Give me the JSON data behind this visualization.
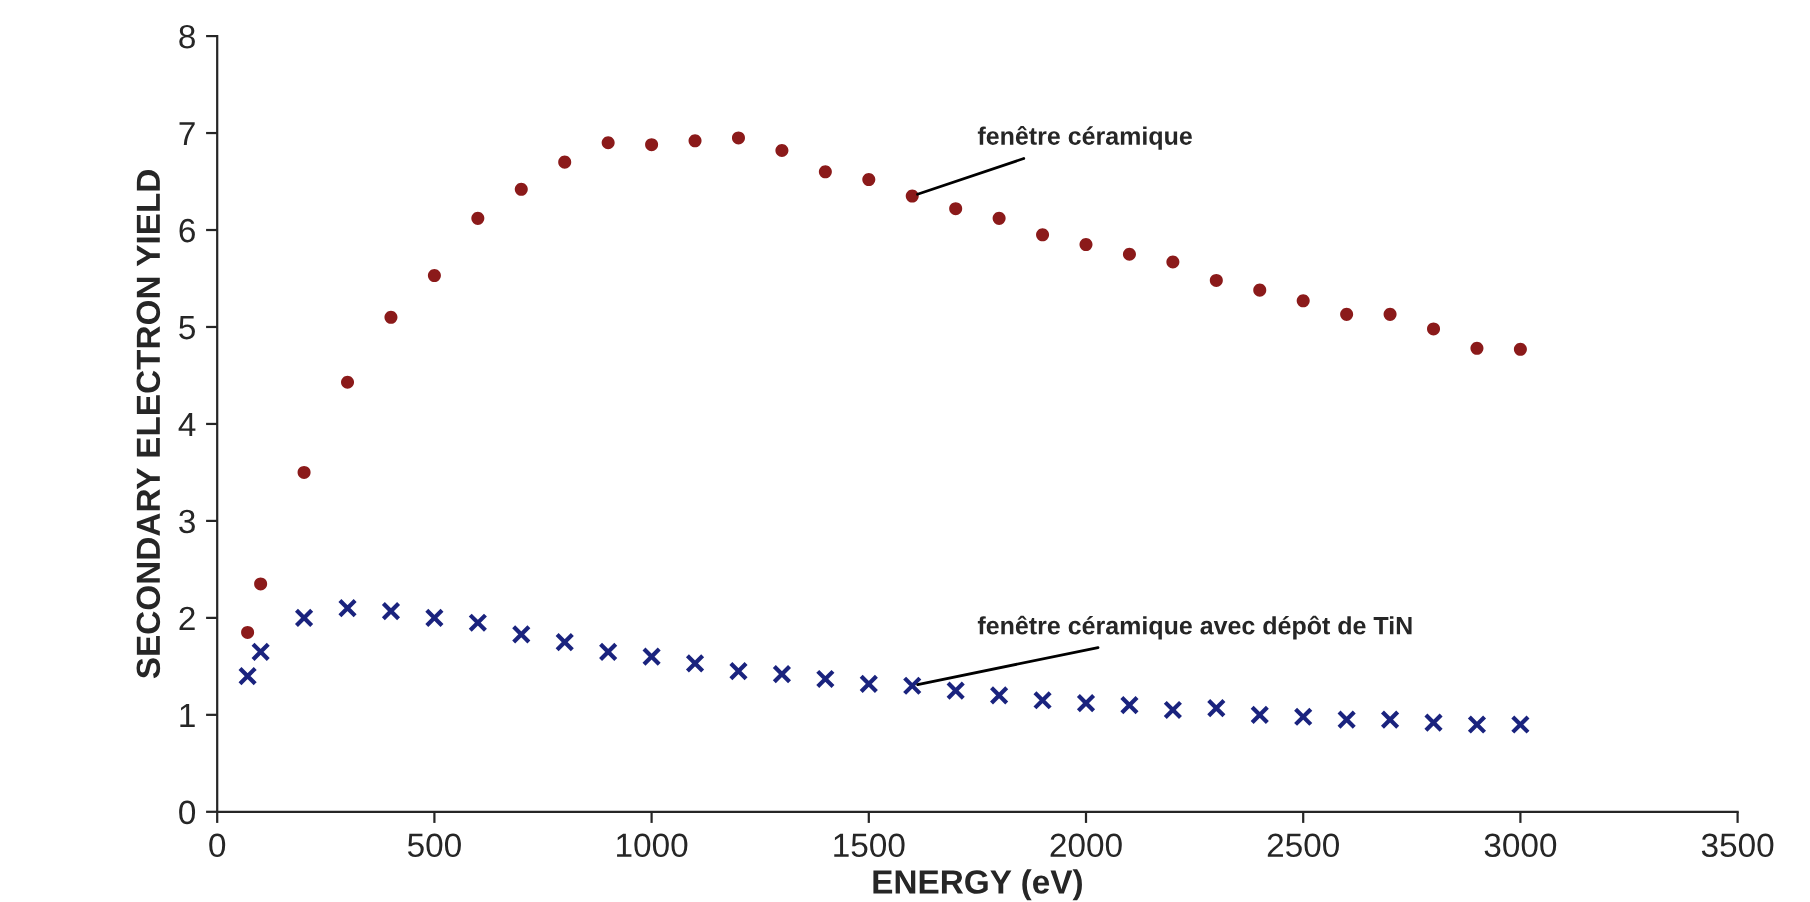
{
  "chart_data": {
    "type": "scatter",
    "xlabel": "ENERGY (eV)",
    "ylabel": "SECONDARY ELECTRON YIELD",
    "x": [
      70,
      100,
      200,
      300,
      400,
      500,
      600,
      700,
      800,
      900,
      1000,
      1100,
      1200,
      1300,
      1400,
      1500,
      1600,
      1700,
      1800,
      1900,
      2000,
      2100,
      2200,
      2300,
      2400,
      2500,
      2600,
      2700,
      2800,
      2900,
      3000
    ],
    "series": [
      {
        "color": "#8b1a1a",
        "marker": "circle",
        "values": [
          1.85,
          2.35,
          3.5,
          4.43,
          5.1,
          5.53,
          6.12,
          6.42,
          6.7,
          6.9,
          6.88,
          6.92,
          6.95,
          6.82,
          6.6,
          6.52,
          6.35,
          6.22,
          6.12,
          5.95,
          5.85,
          5.75,
          5.67,
          5.48,
          5.38,
          5.27,
          5.13,
          5.13,
          4.98,
          4.78,
          4.77
        ]
      },
      {
        "color": "#1a237e",
        "marker": "cross",
        "values": [
          1.4,
          1.65,
          2.0,
          2.1,
          2.07,
          2.0,
          1.95,
          1.83,
          1.75,
          1.65,
          1.6,
          1.53,
          1.45,
          1.42,
          1.37,
          1.32,
          1.3,
          1.25,
          1.2,
          1.15,
          1.12,
          1.1,
          1.05,
          1.07,
          1.0,
          0.98,
          0.95,
          0.95,
          0.92,
          0.9,
          0.9
        ]
      }
    ],
    "annotations": [
      {
        "text": "fenêtre céramique",
        "x": 1600,
        "y": 6.35
      },
      {
        "text": "fenêtre céramique avec dépôt de TiN",
        "x": 1600,
        "y": 1.3
      }
    ],
    "xlim": [
      0,
      3500
    ],
    "xticks": [
      0,
      500,
      1000,
      1500,
      2000,
      2500,
      3000,
      3500
    ],
    "ylim": [
      0,
      8
    ],
    "yticks": [
      0,
      1,
      2,
      3,
      4,
      5,
      6,
      7,
      8
    ],
    "grid": false,
    "legend": false
  }
}
